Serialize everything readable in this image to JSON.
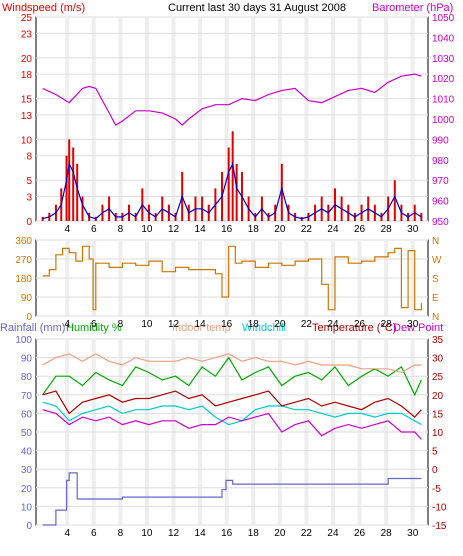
{
  "header": {
    "title": "Current last 30 days 31 August 2008",
    "windspeed_label": "Windspeed (m/s)",
    "barometer_label": "Barometer (hPa)"
  },
  "colors": {
    "windspeed": "#e00000",
    "windspeed_avg": "#0000cc",
    "barometer": "#cc00cc",
    "direction": "#cc7700",
    "rainfall": "#6666cc",
    "humidity": "#00aa00",
    "indoor": "#f0a080",
    "windchill": "#00cccc",
    "temperature": "#b00000",
    "dewpoint": "#cc00cc"
  },
  "chart_data": [
    {
      "type": "line",
      "title": "Current last 30 days 31 August 2008",
      "x_ticks": [
        4,
        6,
        8,
        10,
        12,
        14,
        16,
        18,
        20,
        22,
        24,
        26,
        28,
        30
      ],
      "y_left_ticks": [
        0,
        3,
        5,
        8,
        10,
        13,
        15,
        18,
        20,
        23,
        25
      ],
      "y_right_ticks": [
        950,
        960,
        970,
        980,
        990,
        1000,
        1010,
        1020,
        1030,
        1040,
        1050
      ],
      "ylim_left": [
        0,
        25
      ],
      "ylim_right": [
        950,
        1050
      ],
      "series": [
        {
          "name": "Windspeed (m/s)",
          "axis": "left",
          "x": [
            2,
            2.5,
            3,
            3.4,
            3.8,
            4.0,
            4.3,
            4.6,
            5,
            5.5,
            6,
            6.5,
            7,
            7.5,
            8,
            8.5,
            9,
            9.5,
            10,
            10.5,
            11,
            11.5,
            12,
            12.5,
            13,
            13.5,
            14,
            14.5,
            15,
            15.5,
            16,
            16.3,
            16.6,
            17,
            17.5,
            18,
            18.5,
            19,
            19.5,
            20,
            20.5,
            21,
            21.5,
            22,
            22.5,
            23,
            23.5,
            24,
            24.5,
            25,
            25.5,
            26,
            26.5,
            27,
            27.5,
            28,
            28.5,
            29,
            29.5,
            30,
            30.5
          ],
          "y": [
            0.5,
            1,
            2,
            4,
            8,
            10,
            9,
            7,
            3,
            1,
            0.5,
            2,
            3,
            1,
            1,
            2,
            1,
            4,
            2,
            1,
            3,
            2,
            1,
            6,
            2,
            3,
            3,
            2,
            4,
            6,
            9,
            11,
            7,
            6,
            3,
            1,
            3,
            1,
            2,
            7,
            2,
            1,
            0.5,
            1,
            2,
            3,
            2,
            4,
            3,
            2,
            1,
            2,
            3,
            2,
            1,
            3,
            5,
            2,
            1,
            2,
            1
          ]
        },
        {
          "name": "Windspeed average",
          "axis": "left",
          "x": [
            2,
            2.5,
            3,
            3.4,
            3.8,
            4.0,
            4.3,
            4.6,
            5,
            5.5,
            6,
            6.5,
            7,
            7.5,
            8,
            8.5,
            9,
            9.5,
            10,
            10.5,
            11,
            11.5,
            12,
            12.5,
            13,
            13.5,
            14,
            14.5,
            15,
            15.5,
            16,
            16.3,
            16.6,
            17,
            17.5,
            18,
            18.5,
            19,
            19.5,
            20,
            20.5,
            21,
            21.5,
            22,
            22.5,
            23,
            23.5,
            24,
            24.5,
            25,
            25.5,
            26,
            26.5,
            27,
            27.5,
            28,
            28.5,
            29,
            29.5,
            30,
            30.5
          ],
          "y": [
            0.3,
            0.5,
            1,
            2,
            5,
            7,
            6,
            4,
            2,
            0.5,
            0.3,
            1,
            1.5,
            0.5,
            0.5,
            1,
            0.5,
            2,
            1,
            0.5,
            1.5,
            1,
            0.5,
            3,
            1,
            1.5,
            1.5,
            1,
            2,
            3,
            6,
            7,
            4,
            3,
            1.5,
            0.5,
            1.5,
            0.5,
            1,
            4,
            1,
            0.5,
            0.3,
            0.5,
            1,
            1.5,
            1,
            2,
            1.5,
            1,
            0.5,
            1,
            1.5,
            1,
            0.5,
            1.5,
            3,
            1,
            0.5,
            1,
            0.5
          ]
        },
        {
          "name": "Barometer (hPa)",
          "axis": "right",
          "x": [
            2,
            3,
            4,
            5,
            5.5,
            6,
            7,
            7.5,
            8,
            9,
            10,
            11,
            12,
            12.5,
            13,
            14,
            15,
            16,
            17,
            18,
            19,
            20,
            21,
            22,
            23,
            24,
            25,
            26,
            27,
            28,
            29,
            30,
            30.5
          ],
          "y": [
            1015,
            1012,
            1008,
            1015,
            1016,
            1015,
            1003,
            997,
            999,
            1004,
            1004,
            1003,
            1000,
            997,
            1000,
            1005,
            1007,
            1007,
            1010,
            1009,
            1012,
            1014,
            1015,
            1009,
            1008,
            1011,
            1014,
            1015,
            1013,
            1018,
            1021,
            1022,
            1021
          ]
        }
      ]
    },
    {
      "type": "scatter",
      "x_ticks": [
        4,
        6,
        8,
        10,
        12,
        14,
        16,
        18,
        20,
        22,
        24,
        26,
        28,
        30
      ],
      "y_left_ticks": [
        0,
        90,
        180,
        270,
        360
      ],
      "y_right_ticks": [
        "N",
        "E",
        "S",
        "W",
        "N"
      ],
      "ylim": [
        0,
        360
      ],
      "series": [
        {
          "name": "Wind direction",
          "x": [
            2,
            2.5,
            3,
            3.5,
            4,
            4.5,
            5,
            5.5,
            5.8,
            6,
            7,
            8,
            9,
            10,
            11,
            12,
            13,
            14,
            15,
            15.5,
            16,
            16.5,
            17,
            18,
            19,
            20,
            21,
            22,
            23,
            23.5,
            24,
            25,
            26,
            27,
            28,
            28.5,
            29,
            29.5,
            30,
            30.5
          ],
          "y": [
            190,
            220,
            290,
            320,
            300,
            260,
            330,
            270,
            30,
            250,
            230,
            250,
            240,
            260,
            210,
            230,
            220,
            220,
            200,
            90,
            330,
            250,
            260,
            230,
            250,
            240,
            260,
            270,
            150,
            30,
            280,
            250,
            260,
            280,
            300,
            320,
            40,
            310,
            30,
            60
          ]
        }
      ]
    },
    {
      "type": "line",
      "x_ticks": [
        4,
        6,
        8,
        10,
        12,
        14,
        16,
        18,
        20,
        22,
        24,
        26,
        28,
        30
      ],
      "y_left_ticks": [
        0,
        10,
        20,
        30,
        40,
        50,
        60,
        70,
        80,
        90,
        100
      ],
      "y_right_ticks": [
        -15,
        -10,
        -5,
        0,
        5,
        10,
        15,
        20,
        25,
        30,
        35
      ],
      "ylim_left": [
        0,
        100
      ],
      "ylim_right": [
        -15,
        35
      ],
      "series": [
        {
          "name": "Rainfall (mm)",
          "axis": "left",
          "x": [
            2,
            3,
            3.5,
            3.8,
            4,
            4.3,
            4.6,
            5,
            6,
            8,
            10,
            12,
            14,
            15,
            15.5,
            15.8,
            16,
            16.3,
            16.6,
            17,
            18,
            20,
            22,
            24,
            26,
            27,
            28,
            29,
            30,
            30.5
          ],
          "y": [
            0,
            8,
            8,
            24,
            28,
            28,
            14,
            14,
            14,
            15,
            15,
            15,
            15,
            15,
            19,
            24,
            24,
            22,
            22,
            22,
            22,
            22,
            22,
            22,
            22,
            22,
            25,
            25,
            25,
            25
          ]
        },
        {
          "name": "Humidity %",
          "axis": "left",
          "x": [
            2,
            3,
            4,
            5,
            6,
            7,
            8,
            9,
            10,
            11,
            12,
            13,
            14,
            15,
            16,
            17,
            18,
            19,
            20,
            21,
            22,
            23,
            24,
            25,
            26,
            27,
            28,
            29,
            30,
            30.5
          ],
          "y": [
            70,
            80,
            80,
            75,
            82,
            78,
            75,
            85,
            82,
            78,
            80,
            75,
            85,
            80,
            90,
            78,
            82,
            85,
            75,
            80,
            82,
            78,
            85,
            75,
            80,
            84,
            80,
            85,
            70,
            78
          ]
        },
        {
          "name": "Indoor temp",
          "axis": "right",
          "x": [
            2,
            3,
            4,
            5,
            6,
            7,
            8,
            9,
            10,
            11,
            12,
            13,
            14,
            15,
            16,
            17,
            18,
            19,
            20,
            21,
            22,
            23,
            24,
            25,
            26,
            27,
            28,
            29,
            30,
            30.5
          ],
          "y": [
            28,
            30,
            31,
            29,
            31,
            29,
            28,
            30,
            29,
            29,
            29,
            30,
            29,
            30,
            31,
            29,
            30,
            29,
            29,
            28,
            29,
            28,
            28,
            28,
            27,
            27,
            27,
            26,
            28,
            28
          ]
        },
        {
          "name": "Windchill",
          "axis": "right",
          "x": [
            2,
            3,
            4,
            5,
            6,
            7,
            8,
            9,
            10,
            11,
            12,
            13,
            14,
            15,
            16,
            17,
            18,
            19,
            20,
            21,
            22,
            23,
            24,
            25,
            26,
            27,
            28,
            29,
            30,
            30.5
          ],
          "y": [
            18,
            17,
            13,
            15,
            16,
            17,
            15,
            16,
            16,
            17,
            17,
            16,
            17,
            14,
            12,
            13,
            16,
            17,
            17,
            16,
            16,
            15,
            14,
            15,
            15,
            14,
            15,
            15,
            13,
            12
          ]
        },
        {
          "name": "Temperature (°C)",
          "axis": "right",
          "x": [
            2,
            3,
            4,
            5,
            6,
            7,
            8,
            9,
            10,
            11,
            12,
            13,
            14,
            15,
            16,
            17,
            18,
            19,
            20,
            21,
            22,
            23,
            24,
            25,
            26,
            27,
            28,
            29,
            30,
            30.5
          ],
          "y": [
            20,
            21,
            15,
            18,
            19,
            20,
            18,
            19,
            19,
            20,
            21,
            19,
            20,
            17,
            18,
            19,
            20,
            21,
            17,
            18,
            19,
            17,
            18,
            17,
            16,
            18,
            19,
            17,
            14,
            16
          ]
        },
        {
          "name": "Dew Point",
          "axis": "right",
          "x": [
            2,
            3,
            4,
            5,
            6,
            7,
            8,
            9,
            10,
            11,
            12,
            13,
            14,
            15,
            16,
            17,
            18,
            19,
            20,
            21,
            22,
            23,
            24,
            25,
            26,
            27,
            28,
            29,
            30,
            30.5
          ],
          "y": [
            16,
            15,
            12,
            14,
            13,
            14,
            12,
            13,
            12,
            13,
            13,
            11,
            12,
            12,
            14,
            13,
            14,
            15,
            10,
            12,
            13,
            9,
            11,
            12,
            11,
            12,
            13,
            10,
            10,
            8
          ]
        }
      ]
    }
  ],
  "panel3_labels": {
    "rainfall": "Rainfall (mm)",
    "humidity": "Humidity %",
    "indoor": "Indoor temp",
    "windchill": "Windchill",
    "temperature": "Temperature (°C)",
    "dewpoint": "Dew Point"
  }
}
